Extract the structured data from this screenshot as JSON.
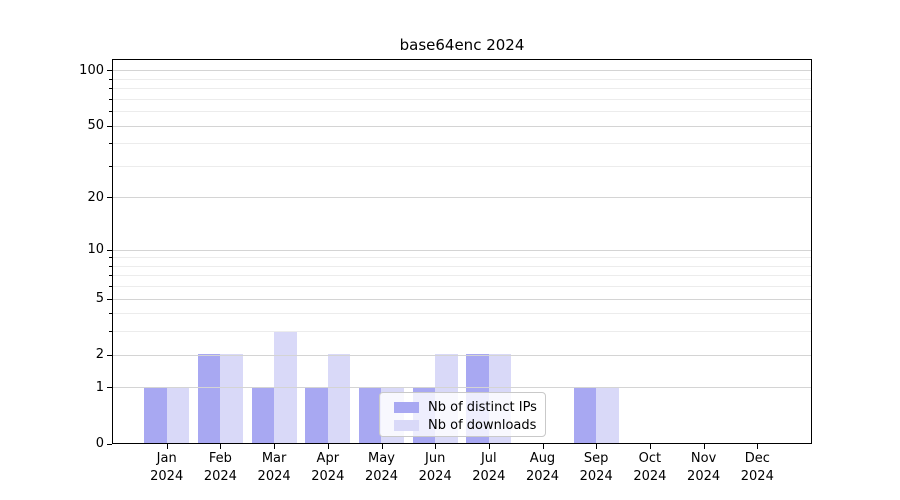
{
  "chart_data": {
    "type": "bar",
    "title": "base64enc 2024",
    "categories": [
      "Jan",
      "Feb",
      "Mar",
      "Apr",
      "May",
      "Jun",
      "Jul",
      "Aug",
      "Sep",
      "Oct",
      "Nov",
      "Dec"
    ],
    "x_sub_label": "2024",
    "series": [
      {
        "name": "Nb of distinct IPs",
        "color": "#a8a8f2",
        "values": [
          1,
          2,
          1,
          1,
          1,
          1,
          2,
          0,
          1,
          0,
          0,
          0
        ]
      },
      {
        "name": "Nb of downloads",
        "color": "#d9d9f8",
        "values": [
          1,
          2,
          3,
          2,
          1,
          2,
          2,
          0,
          1,
          0,
          0,
          0
        ]
      }
    ],
    "yscale": "log10(1+v)",
    "y_tick_labels": [
      "0",
      "1",
      "2",
      "5",
      "10",
      "20",
      "50",
      "100"
    ],
    "y_tick_values": [
      0,
      1,
      2,
      5,
      10,
      20,
      50,
      100
    ],
    "y_minor_values": [
      3,
      4,
      6,
      7,
      8,
      9,
      30,
      40,
      60,
      70,
      80,
      90
    ],
    "ylim": [
      0,
      113
    ],
    "grid": "on",
    "legend_position": "inside-bottom-center"
  },
  "colors": {
    "background": "#ffffff",
    "bar_distinct_ips": "#a8a8f2",
    "bar_downloads": "#d9d9f8",
    "grid_major": "#d4d4d4",
    "grid_minor": "#ececec",
    "axis": "#000000",
    "legend_border": "#c9c9c9"
  }
}
